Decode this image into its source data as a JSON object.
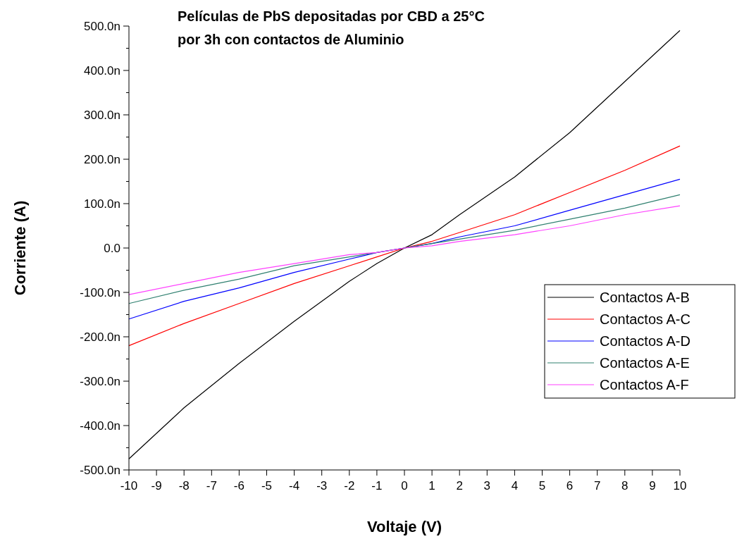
{
  "chart_data": {
    "type": "line",
    "title": "Películas de PbS depositadas por CBD a 25°C\npor 3h con contactos de Aluminio",
    "xlabel": "Voltaje (V)",
    "ylabel": "Corriente (A)",
    "x": [
      -10,
      -8,
      -6,
      -4,
      -2,
      -1,
      0,
      1,
      2,
      4,
      6,
      8,
      10
    ],
    "xlim": [
      -10,
      10
    ],
    "xticks": [
      -10,
      -9,
      -8,
      -7,
      -6,
      -5,
      -4,
      -3,
      -2,
      -1,
      0,
      1,
      2,
      3,
      4,
      5,
      6,
      7,
      8,
      9,
      10
    ],
    "ylim": [
      -500,
      500
    ],
    "yticks": [
      {
        "value": -500,
        "label": "-500.0n"
      },
      {
        "value": -400,
        "label": "-400.0n"
      },
      {
        "value": -300,
        "label": "-300.0n"
      },
      {
        "value": -200,
        "label": "-200.0n"
      },
      {
        "value": -100,
        "label": "-100.0n"
      },
      {
        "value": 0,
        "label": "0.0"
      },
      {
        "value": 100,
        "label": "100.0n"
      },
      {
        "value": 200,
        "label": "200.0n"
      },
      {
        "value": 300,
        "label": "300.0n"
      },
      {
        "value": 400,
        "label": "400.0n"
      },
      {
        "value": 500,
        "label": "500.0n"
      }
    ],
    "grid": false,
    "legend": "right",
    "marker": "none",
    "line_style": "solid",
    "series": [
      {
        "name": "Contactos A-B",
        "color": "#000000",
        "values": [
          -475,
          -360,
          -260,
          -165,
          -75,
          -35,
          0,
          30,
          75,
          160,
          260,
          375,
          490
        ]
      },
      {
        "name": "Contactos A-C",
        "color": "#ff0000",
        "values": [
          -220,
          -170,
          -125,
          -80,
          -40,
          -20,
          0,
          15,
          35,
          75,
          125,
          175,
          230
        ]
      },
      {
        "name": "Contactos A-D",
        "color": "#0000ff",
        "values": [
          -160,
          -120,
          -90,
          -55,
          -25,
          -10,
          0,
          10,
          25,
          50,
          85,
          120,
          155
        ]
      },
      {
        "name": "Contactos A-E",
        "color": "#308070",
        "values": [
          -125,
          -95,
          -70,
          -40,
          -20,
          -10,
          0,
          10,
          20,
          40,
          65,
          90,
          120
        ]
      },
      {
        "name": "Contactos A-F",
        "color": "#ff40ff",
        "values": [
          -105,
          -80,
          -55,
          -35,
          -15,
          -10,
          0,
          5,
          15,
          30,
          50,
          75,
          95
        ]
      }
    ]
  }
}
